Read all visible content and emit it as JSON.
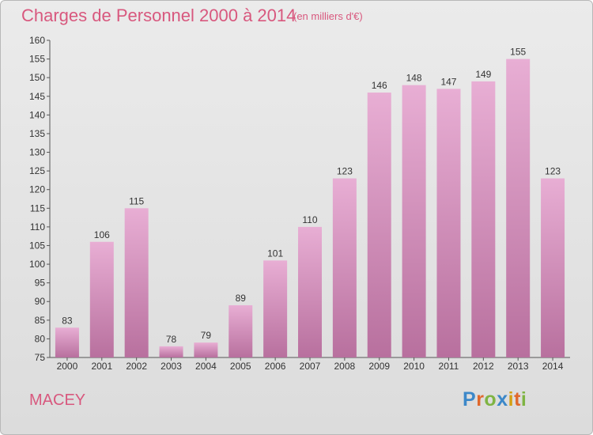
{
  "title": "Charges de Personnel 2000 à 2014",
  "unit": "(en milliers d'€)",
  "commune": "MACEY",
  "logo": {
    "letters": [
      "P",
      "r",
      "o",
      "x",
      "i",
      "t",
      "i"
    ],
    "colors": [
      "#3c88c9",
      "#e0682c",
      "#7fb443",
      "#3c88c9",
      "#d4a013",
      "#e0682c",
      "#7fb443"
    ]
  },
  "colors": {
    "bar": "#dca0c6",
    "bar_dark": "#b8709e",
    "title": "#d8587e"
  },
  "chart_data": {
    "type": "bar",
    "categories": [
      "2000",
      "2001",
      "2002",
      "2003",
      "2004",
      "2005",
      "2006",
      "2007",
      "2008",
      "2009",
      "2010",
      "2011",
      "2012",
      "2013",
      "2014"
    ],
    "values": [
      83,
      106,
      115,
      78,
      79,
      89,
      101,
      110,
      123,
      146,
      148,
      147,
      149,
      155,
      123
    ],
    "ylim": [
      75,
      160
    ],
    "yticks": [
      75,
      80,
      85,
      90,
      95,
      100,
      105,
      110,
      115,
      120,
      125,
      130,
      135,
      140,
      145,
      150,
      155,
      160
    ],
    "grid": false,
    "title": "Charges de Personnel 2000 à 2014"
  }
}
